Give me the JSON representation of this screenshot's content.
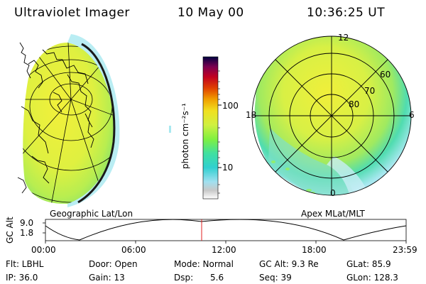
{
  "header": {
    "instrument": "Ultraviolet Imager",
    "date": "10 May 00",
    "time": "10:36:25 UT"
  },
  "colorbar": {
    "unit_label": "photon cm⁻²s⁻¹",
    "ticks": [
      "100",
      "10"
    ],
    "colors": [
      "#ffffff",
      "#c8c8c8",
      "#a0e0f0",
      "#30d0d0",
      "#40e0a0",
      "#80f040",
      "#d0f040",
      "#f0e020",
      "#f0a000",
      "#e04000",
      "#c00020",
      "#7a0050",
      "#000040"
    ]
  },
  "left_panel": {
    "label": "Geographic Lat/Lon"
  },
  "right_panel": {
    "label": "Apex MLat/MLT",
    "mlt_labels": {
      "top": "12",
      "left": "18",
      "right": "6",
      "bottom": "0"
    },
    "lat_labels": [
      "60",
      "70",
      "80"
    ]
  },
  "altitude_plot": {
    "ylabel": "GC Alt",
    "y_ticks": [
      "9.0",
      "1.8"
    ],
    "x_ticks": [
      "00:00",
      "06:00",
      "12:00",
      "18:00",
      "23:59"
    ],
    "current_time_marker": "10:36"
  },
  "info": {
    "flt": "Flt: LBHL",
    "ip": "IP: 36.0",
    "door": "Door: Open",
    "gain": "Gain: 13",
    "mode": "Mode: Normal",
    "dsp_label": "Dsp:",
    "dsp_value": "5.6",
    "gc_alt": "GC Alt: 9.3 Re",
    "seq": "Seq: 39",
    "glat": "GLat: 85.9",
    "glon": "GLon: 128.3"
  }
}
